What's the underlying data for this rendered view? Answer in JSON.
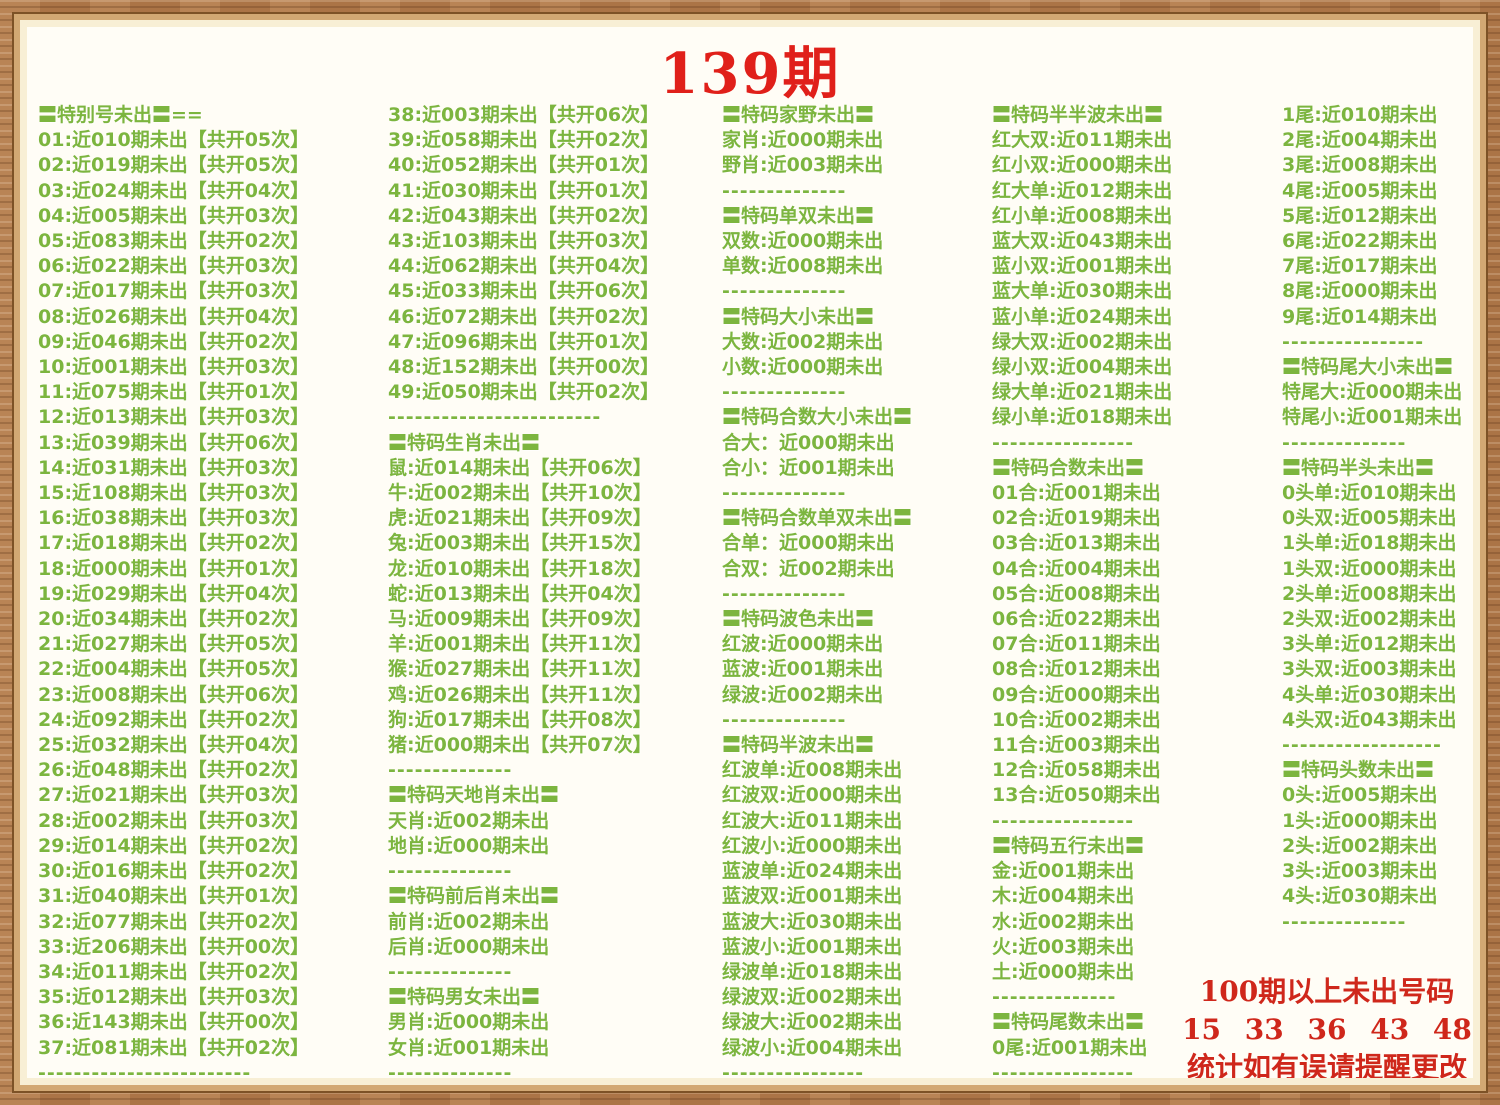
{
  "title": "139期",
  "colors": {
    "text_green": "#7cb53f",
    "title_red": "#e0201a",
    "footer_red": "#cf271b",
    "frame_wood": "#b47c4c",
    "frame_tan": "#d2a873",
    "frame_cream": "#f8efd5",
    "page_bg": "#fffdf6"
  },
  "footer": {
    "line1": "100期以上未出号码",
    "line2": "15 33 36 43 48",
    "line3": "统计如有误请提醒更改"
  },
  "columns": [
    {
      "items": [
        {
          "type": "header",
          "text": "〓特别号未出〓=="
        },
        {
          "type": "line",
          "text": "01:近010期未出【共开05次】"
        },
        {
          "type": "line",
          "text": "02:近019期未出【共开05次】"
        },
        {
          "type": "line",
          "text": "03:近024期未出【共开04次】"
        },
        {
          "type": "line",
          "text": "04:近005期未出【共开03次】"
        },
        {
          "type": "line",
          "text": "05:近083期未出【共开02次】"
        },
        {
          "type": "line",
          "text": "06:近022期未出【共开03次】"
        },
        {
          "type": "line",
          "text": "07:近017期未出【共开03次】"
        },
        {
          "type": "line",
          "text": "08:近026期未出【共开04次】"
        },
        {
          "type": "line",
          "text": "09:近046期未出【共开02次】"
        },
        {
          "type": "line",
          "text": "10:近001期未出【共开03次】"
        },
        {
          "type": "line",
          "text": "11:近075期未出【共开01次】"
        },
        {
          "type": "line",
          "text": "12:近013期未出【共开03次】"
        },
        {
          "type": "line",
          "text": "13:近039期未出【共开06次】"
        },
        {
          "type": "line",
          "text": "14:近031期未出【共开03次】"
        },
        {
          "type": "line",
          "text": "15:近108期未出【共开03次】"
        },
        {
          "type": "line",
          "text": "16:近038期未出【共开03次】"
        },
        {
          "type": "line",
          "text": "17:近018期未出【共开02次】"
        },
        {
          "type": "line",
          "text": "18:近000期未出【共开01次】"
        },
        {
          "type": "line",
          "text": "19:近029期未出【共开04次】"
        },
        {
          "type": "line",
          "text": "20:近034期未出【共开02次】"
        },
        {
          "type": "line",
          "text": "21:近027期未出【共开05次】"
        },
        {
          "type": "line",
          "text": "22:近004期未出【共开05次】"
        },
        {
          "type": "line",
          "text": "23:近008期未出【共开06次】"
        },
        {
          "type": "line",
          "text": "24:近092期未出【共开02次】"
        },
        {
          "type": "line",
          "text": "25:近032期未出【共开04次】"
        },
        {
          "type": "line",
          "text": "26:近048期未出【共开02次】"
        },
        {
          "type": "line",
          "text": "27:近021期未出【共开03次】"
        },
        {
          "type": "line",
          "text": "28:近002期未出【共开03次】"
        },
        {
          "type": "line",
          "text": "29:近014期未出【共开02次】"
        },
        {
          "type": "line",
          "text": "30:近016期未出【共开02次】"
        },
        {
          "type": "line",
          "text": "31:近040期未出【共开01次】"
        },
        {
          "type": "line",
          "text": "32:近077期未出【共开02次】"
        },
        {
          "type": "line",
          "text": "33:近206期未出【共开00次】"
        },
        {
          "type": "line",
          "text": "34:近011期未出【共开02次】"
        },
        {
          "type": "line",
          "text": "35:近012期未出【共开03次】"
        },
        {
          "type": "line",
          "text": "36:近143期未出【共开00次】"
        },
        {
          "type": "line",
          "text": "37:近081期未出【共开02次】"
        },
        {
          "type": "divider",
          "text": "------------------------"
        }
      ]
    },
    {
      "items": [
        {
          "type": "line",
          "text": "38:近003期未出【共开06次】"
        },
        {
          "type": "line",
          "text": "39:近058期未出【共开02次】"
        },
        {
          "type": "line",
          "text": "40:近052期未出【共开01次】"
        },
        {
          "type": "line",
          "text": "41:近030期未出【共开01次】"
        },
        {
          "type": "line",
          "text": "42:近043期未出【共开02次】"
        },
        {
          "type": "line",
          "text": "43:近103期未出【共开03次】"
        },
        {
          "type": "line",
          "text": "44:近062期未出【共开04次】"
        },
        {
          "type": "line",
          "text": "45:近033期未出【共开06次】"
        },
        {
          "type": "line",
          "text": "46:近072期未出【共开02次】"
        },
        {
          "type": "line",
          "text": "47:近096期未出【共开01次】"
        },
        {
          "type": "line",
          "text": "48:近152期未出【共开00次】"
        },
        {
          "type": "line",
          "text": "49:近050期未出【共开02次】"
        },
        {
          "type": "divider",
          "text": "------------------------"
        },
        {
          "type": "header",
          "text": "〓特码生肖未出〓"
        },
        {
          "type": "line",
          "text": "鼠:近014期未出【共开06次】"
        },
        {
          "type": "line",
          "text": "牛:近002期未出【共开10次】"
        },
        {
          "type": "line",
          "text": "虎:近021期未出【共开09次】"
        },
        {
          "type": "line",
          "text": "兔:近003期未出【共开15次】"
        },
        {
          "type": "line",
          "text": "龙:近010期未出【共开18次】"
        },
        {
          "type": "line",
          "text": "蛇:近013期未出【共开04次】"
        },
        {
          "type": "line",
          "text": "马:近009期未出【共开09次】"
        },
        {
          "type": "line",
          "text": "羊:近001期未出【共开11次】"
        },
        {
          "type": "line",
          "text": "猴:近027期未出【共开11次】"
        },
        {
          "type": "line",
          "text": "鸡:近026期未出【共开11次】"
        },
        {
          "type": "line",
          "text": "狗:近017期未出【共开08次】"
        },
        {
          "type": "line",
          "text": "猪:近000期未出【共开07次】"
        },
        {
          "type": "divider",
          "text": "--------------"
        },
        {
          "type": "header",
          "text": "〓特码天地肖未出〓"
        },
        {
          "type": "line",
          "text": "天肖:近002期未出"
        },
        {
          "type": "line",
          "text": "地肖:近000期未出"
        },
        {
          "type": "divider",
          "text": "--------------"
        },
        {
          "type": "header",
          "text": "〓特码前后肖未出〓"
        },
        {
          "type": "line",
          "text": "前肖:近002期未出"
        },
        {
          "type": "line",
          "text": "后肖:近000期未出"
        },
        {
          "type": "divider",
          "text": "--------------"
        },
        {
          "type": "header",
          "text": "〓特码男女未出〓"
        },
        {
          "type": "line",
          "text": "男肖:近000期未出"
        },
        {
          "type": "line",
          "text": "女肖:近001期未出"
        },
        {
          "type": "divider",
          "text": "--------------"
        }
      ]
    },
    {
      "items": [
        {
          "type": "header",
          "text": "〓特码家野未出〓"
        },
        {
          "type": "line",
          "text": "家肖:近000期未出"
        },
        {
          "type": "line",
          "text": "野肖:近003期未出"
        },
        {
          "type": "divider",
          "text": "--------------"
        },
        {
          "type": "header",
          "text": "〓特码单双未出〓"
        },
        {
          "type": "line",
          "text": "双数:近000期未出"
        },
        {
          "type": "line",
          "text": "单数:近008期未出"
        },
        {
          "type": "divider",
          "text": "--------------"
        },
        {
          "type": "header",
          "text": "〓特码大小未出〓"
        },
        {
          "type": "line",
          "text": "大数:近002期未出"
        },
        {
          "type": "line",
          "text": "小数:近000期未出"
        },
        {
          "type": "divider",
          "text": "--------------"
        },
        {
          "type": "header",
          "text": "〓特码合数大小未出〓"
        },
        {
          "type": "line",
          "text": "合大：近000期未出"
        },
        {
          "type": "line",
          "text": "合小：近001期未出"
        },
        {
          "type": "divider",
          "text": "--------------"
        },
        {
          "type": "header",
          "text": "〓特码合数单双未出〓"
        },
        {
          "type": "line",
          "text": "合单：近000期未出"
        },
        {
          "type": "line",
          "text": "合双：近002期未出"
        },
        {
          "type": "divider",
          "text": "--------------"
        },
        {
          "type": "header",
          "text": "〓特码波色未出〓"
        },
        {
          "type": "line",
          "text": "红波:近000期未出"
        },
        {
          "type": "line",
          "text": "蓝波:近001期未出"
        },
        {
          "type": "line",
          "text": "绿波:近002期未出"
        },
        {
          "type": "divider",
          "text": "--------------"
        },
        {
          "type": "header",
          "text": "〓特码半波未出〓"
        },
        {
          "type": "line",
          "text": "红波单:近008期未出"
        },
        {
          "type": "line",
          "text": "红波双:近000期未出"
        },
        {
          "type": "line",
          "text": "红波大:近011期未出"
        },
        {
          "type": "line",
          "text": "红波小:近000期未出"
        },
        {
          "type": "line",
          "text": "蓝波单:近024期未出"
        },
        {
          "type": "line",
          "text": "蓝波双:近001期未出"
        },
        {
          "type": "line",
          "text": "蓝波大:近030期未出"
        },
        {
          "type": "line",
          "text": "蓝波小:近001期未出"
        },
        {
          "type": "line",
          "text": "绿波单:近018期未出"
        },
        {
          "type": "line",
          "text": "绿波双:近002期未出"
        },
        {
          "type": "line",
          "text": "绿波大:近002期未出"
        },
        {
          "type": "line",
          "text": "绿波小:近004期未出"
        },
        {
          "type": "divider",
          "text": "----------------"
        }
      ]
    },
    {
      "items": [
        {
          "type": "header",
          "text": "〓特码半半波未出〓"
        },
        {
          "type": "line",
          "text": "红大双:近011期未出"
        },
        {
          "type": "line",
          "text": "红小双:近000期未出"
        },
        {
          "type": "line",
          "text": "红大单:近012期未出"
        },
        {
          "type": "line",
          "text": "红小单:近008期未出"
        },
        {
          "type": "line",
          "text": "蓝大双:近043期未出"
        },
        {
          "type": "line",
          "text": "蓝小双:近001期未出"
        },
        {
          "type": "line",
          "text": "蓝大单:近030期未出"
        },
        {
          "type": "line",
          "text": "蓝小单:近024期未出"
        },
        {
          "type": "line",
          "text": "绿大双:近002期未出"
        },
        {
          "type": "line",
          "text": "绿小双:近004期未出"
        },
        {
          "type": "line",
          "text": "绿大单:近021期未出"
        },
        {
          "type": "line",
          "text": "绿小单:近018期未出"
        },
        {
          "type": "divider",
          "text": "----------------"
        },
        {
          "type": "header",
          "text": "〓特码合数未出〓"
        },
        {
          "type": "line",
          "text": "01合:近001期未出"
        },
        {
          "type": "line",
          "text": "02合:近019期未出"
        },
        {
          "type": "line",
          "text": "03合:近013期未出"
        },
        {
          "type": "line",
          "text": "04合:近004期未出"
        },
        {
          "type": "line",
          "text": "05合:近008期未出"
        },
        {
          "type": "line",
          "text": "06合:近022期未出"
        },
        {
          "type": "line",
          "text": "07合:近011期未出"
        },
        {
          "type": "line",
          "text": "08合:近012期未出"
        },
        {
          "type": "line",
          "text": "09合:近000期未出"
        },
        {
          "type": "line",
          "text": "10合:近002期未出"
        },
        {
          "type": "line",
          "text": "11合:近003期未出"
        },
        {
          "type": "line",
          "text": "12合:近058期未出"
        },
        {
          "type": "line",
          "text": "13合:近050期未出"
        },
        {
          "type": "divider",
          "text": "----------------"
        },
        {
          "type": "header",
          "text": "〓特码五行未出〓"
        },
        {
          "type": "line",
          "text": "金:近001期未出"
        },
        {
          "type": "line",
          "text": "木:近004期未出"
        },
        {
          "type": "line",
          "text": "水:近002期未出"
        },
        {
          "type": "line",
          "text": "火:近003期未出"
        },
        {
          "type": "line",
          "text": "土:近000期未出"
        },
        {
          "type": "divider",
          "text": "--------------"
        },
        {
          "type": "header",
          "text": "〓特码尾数未出〓"
        },
        {
          "type": "line",
          "text": "0尾:近001期未出"
        },
        {
          "type": "divider",
          "text": "----------------"
        }
      ]
    },
    {
      "items": [
        {
          "type": "line",
          "text": "1尾:近010期未出"
        },
        {
          "type": "line",
          "text": "2尾:近004期未出"
        },
        {
          "type": "line",
          "text": "3尾:近008期未出"
        },
        {
          "type": "line",
          "text": "4尾:近005期未出"
        },
        {
          "type": "line",
          "text": "5尾:近012期未出"
        },
        {
          "type": "line",
          "text": "6尾:近022期未出"
        },
        {
          "type": "line",
          "text": "7尾:近017期未出"
        },
        {
          "type": "line",
          "text": "8尾:近000期未出"
        },
        {
          "type": "line",
          "text": "9尾:近014期未出"
        },
        {
          "type": "divider",
          "text": "----------------"
        },
        {
          "type": "header",
          "text": "〓特码尾大小未出〓"
        },
        {
          "type": "line",
          "text": "特尾大:近000期未出"
        },
        {
          "type": "line",
          "text": "特尾小:近001期未出"
        },
        {
          "type": "divider",
          "text": "--------------"
        },
        {
          "type": "header",
          "text": "〓特码半头未出〓"
        },
        {
          "type": "line",
          "text": "0头单:近010期未出"
        },
        {
          "type": "line",
          "text": "0头双:近005期未出"
        },
        {
          "type": "line",
          "text": "1头单:近018期未出"
        },
        {
          "type": "line",
          "text": "1头双:近000期未出"
        },
        {
          "type": "line",
          "text": "2头单:近008期未出"
        },
        {
          "type": "line",
          "text": "2头双:近002期未出"
        },
        {
          "type": "line",
          "text": "3头单:近012期未出"
        },
        {
          "type": "line",
          "text": "3头双:近003期未出"
        },
        {
          "type": "line",
          "text": "4头单:近030期未出"
        },
        {
          "type": "line",
          "text": "4头双:近043期未出"
        },
        {
          "type": "divider",
          "text": "------------------"
        },
        {
          "type": "header",
          "text": "〓特码头数未出〓"
        },
        {
          "type": "line",
          "text": "0头:近005期未出"
        },
        {
          "type": "line",
          "text": "1头:近000期未出"
        },
        {
          "type": "line",
          "text": "2头:近002期未出"
        },
        {
          "type": "line",
          "text": "3头:近003期未出"
        },
        {
          "type": "line",
          "text": "4头:近030期未出"
        },
        {
          "type": "divider",
          "text": "--------------"
        }
      ]
    }
  ]
}
